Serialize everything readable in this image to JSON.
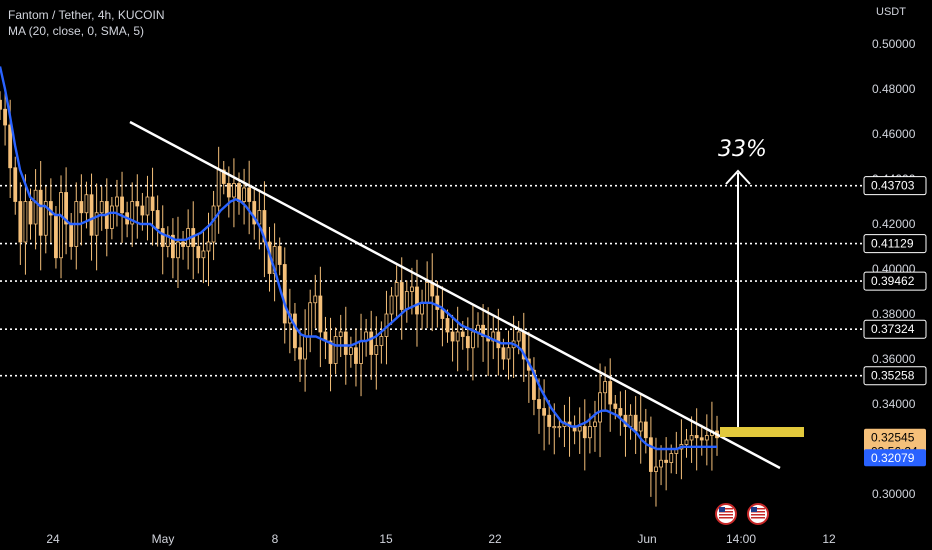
{
  "header": {
    "title": "Fantom / Tether, 4h, KUCOIN",
    "indicator": "MA (20, close, 0, SMA, 5)"
  },
  "currency": "USDT",
  "colors": {
    "background": "#000000",
    "candle": "#f5c07a",
    "ma": "#2962ff",
    "annotation": "#ffffff",
    "target_box": "#e2c93c",
    "price_tag": "#f5c07a",
    "ma_tag": "#2962ff"
  },
  "chart_data": {
    "type": "candlestick",
    "ylim": [
      0.293,
      0.513
    ],
    "yticks": [
      "0.50000",
      "0.48000",
      "0.46000",
      "0.44000",
      "0.42000",
      "0.40000",
      "0.38000",
      "0.36000",
      "0.34000",
      "0.30000"
    ],
    "xticks": [
      "24",
      "May",
      "8",
      "15",
      "22",
      "Jun",
      "14:00",
      "12"
    ],
    "levels": [
      "0.43703",
      "0.41129",
      "0.39462",
      "0.37324",
      "0.35258"
    ],
    "last_price": "0.32545",
    "countdown": "03:56:24",
    "ma_value": "0.32079",
    "annotation_pct": "33%",
    "close_path": [
      0.471,
      0.464,
      0.445,
      0.43,
      0.412,
      0.43,
      0.42,
      0.435,
      0.415,
      0.43,
      0.424,
      0.405,
      0.434,
      0.42,
      0.41,
      0.43,
      0.425,
      0.433,
      0.415,
      0.425,
      0.43,
      0.418,
      0.428,
      0.432,
      0.425,
      0.42,
      0.43,
      0.428,
      0.424,
      0.432,
      0.426,
      0.418,
      0.41,
      0.415,
      0.405,
      0.412,
      0.41,
      0.418,
      0.41,
      0.405,
      0.408,
      0.412,
      0.428,
      0.444,
      0.438,
      0.432,
      0.438,
      0.43,
      0.436,
      0.43,
      0.42,
      0.426,
      0.412,
      0.398,
      0.41,
      0.402,
      0.376,
      0.38,
      0.365,
      0.36,
      0.37,
      0.385,
      0.388,
      0.372,
      0.368,
      0.358,
      0.37,
      0.372,
      0.362,
      0.365,
      0.358,
      0.368,
      0.372,
      0.362,
      0.366,
      0.37,
      0.38,
      0.388,
      0.394,
      0.382,
      0.39,
      0.392,
      0.38,
      0.385,
      0.394,
      0.388,
      0.382,
      0.378,
      0.372,
      0.368,
      0.372,
      0.37,
      0.365,
      0.372,
      0.375,
      0.37,
      0.368,
      0.372,
      0.365,
      0.36,
      0.365,
      0.368,
      0.372,
      0.36,
      0.355,
      0.342,
      0.338,
      0.335,
      0.33,
      0.33,
      0.33,
      0.332,
      0.33,
      0.328,
      0.33,
      0.325,
      0.33,
      0.332,
      0.345,
      0.35,
      0.34,
      0.338,
      0.335,
      0.33,
      0.335,
      0.328,
      0.332,
      0.325,
      0.31,
      0.312,
      0.315,
      0.314,
      0.318,
      0.32,
      0.322,
      0.324,
      0.326,
      0.325,
      0.324,
      0.326,
      0.328,
      0.325
    ],
    "ma_path": [
      0.49,
      0.48,
      0.468,
      0.455,
      0.444,
      0.438,
      0.432,
      0.43,
      0.428,
      0.428,
      0.426,
      0.424,
      0.424,
      0.422,
      0.42,
      0.42,
      0.42,
      0.421,
      0.422,
      0.423,
      0.424,
      0.424,
      0.425,
      0.425,
      0.424,
      0.423,
      0.422,
      0.421,
      0.42,
      0.42,
      0.42,
      0.418,
      0.416,
      0.415,
      0.414,
      0.413,
      0.413,
      0.413,
      0.414,
      0.415,
      0.416,
      0.418,
      0.42,
      0.423,
      0.426,
      0.428,
      0.43,
      0.431,
      0.43,
      0.428,
      0.425,
      0.422,
      0.418,
      0.412,
      0.405,
      0.398,
      0.39,
      0.383,
      0.378,
      0.374,
      0.371,
      0.37,
      0.37,
      0.37,
      0.369,
      0.368,
      0.367,
      0.366,
      0.366,
      0.366,
      0.366,
      0.367,
      0.368,
      0.368,
      0.369,
      0.37,
      0.372,
      0.374,
      0.376,
      0.378,
      0.38,
      0.382,
      0.383,
      0.384,
      0.385,
      0.385,
      0.385,
      0.384,
      0.383,
      0.381,
      0.379,
      0.377,
      0.375,
      0.374,
      0.373,
      0.372,
      0.371,
      0.37,
      0.369,
      0.368,
      0.367,
      0.367,
      0.367,
      0.366,
      0.364,
      0.36,
      0.356,
      0.351,
      0.346,
      0.342,
      0.338,
      0.335,
      0.332,
      0.331,
      0.33,
      0.33,
      0.331,
      0.332,
      0.334,
      0.336,
      0.337,
      0.337,
      0.336,
      0.335,
      0.333,
      0.331,
      0.329,
      0.327,
      0.324,
      0.322,
      0.321,
      0.32,
      0.32,
      0.32,
      0.32,
      0.32,
      0.321,
      0.321,
      0.321,
      0.321,
      0.321,
      0.321,
      0.321,
      0.321
    ]
  }
}
